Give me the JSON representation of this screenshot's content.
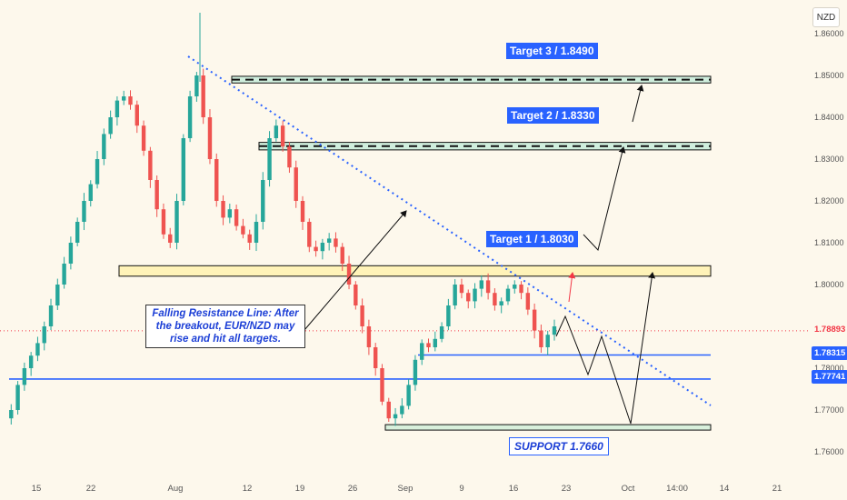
{
  "currency": "NZD",
  "chart_data": {
    "type": "candlestick",
    "instrument": "EUR/NZD",
    "ylim": [
      1.755,
      1.865
    ],
    "y_ticks": [
      "1.86000",
      "1.85000",
      "1.84000",
      "1.83000",
      "1.82000",
      "1.81000",
      "1.80000",
      "1.79000",
      "1.78000",
      "1.77000",
      "1.76000"
    ],
    "x_ticks": [
      "15",
      "22",
      "Aug",
      "12",
      "19",
      "26",
      "Sep",
      "9",
      "16",
      "23",
      "Oct",
      "14:00",
      "14",
      "21"
    ],
    "zones": [
      {
        "name": "target3",
        "low": 1.8482,
        "high": 1.8498,
        "label": "Target 3 / 1.8490"
      },
      {
        "name": "target2",
        "low": 1.8322,
        "high": 1.834,
        "label": "Target 2 / 1.8330"
      },
      {
        "name": "target1",
        "low": 1.802,
        "high": 1.8045,
        "label": "Target 1 / 1.8030"
      },
      {
        "name": "support",
        "low": 1.7654,
        "high": 1.7665,
        "label": "SUPPORT 1.7660"
      }
    ],
    "horizontal_lines": [
      {
        "value": 1.78315,
        "label": "1.78315",
        "color": "#2962ff"
      },
      {
        "value": 1.77741,
        "label": "1.77741",
        "color": "#2962ff"
      }
    ],
    "current_price": {
      "value": 1.78893,
      "label": "1.78893",
      "color": "#f23645"
    },
    "annotation": "Falling Resistance Line: After the breakout, EUR/NZD may rise and hit all targets.",
    "close_path": [
      1.768,
      1.77,
      1.776,
      1.78,
      1.783,
      1.786,
      1.79,
      1.795,
      1.8,
      1.805,
      1.81,
      1.815,
      1.82,
      1.824,
      1.83,
      1.836,
      1.84,
      1.844,
      1.845,
      1.843,
      1.838,
      1.832,
      1.825,
      1.818,
      1.812,
      1.81,
      1.82,
      1.835,
      1.845,
      1.85,
      1.84,
      1.83,
      1.82,
      1.816,
      1.818,
      1.814,
      1.812,
      1.81,
      1.815,
      1.825,
      1.835,
      1.838,
      1.833,
      1.828,
      1.82,
      1.815,
      1.809,
      1.808,
      1.81,
      1.811,
      1.809,
      1.805,
      1.8,
      1.795,
      1.79,
      1.785,
      1.78,
      1.772,
      1.768,
      1.769,
      1.771,
      1.776,
      1.782,
      1.786,
      1.785,
      1.787,
      1.79,
      1.795,
      1.8,
      1.798,
      1.796,
      1.799,
      1.801,
      1.798,
      1.795,
      1.796,
      1.799,
      1.8,
      1.798,
      1.794,
      1.789,
      1.785,
      1.788,
      1.79
    ],
    "projection_path": [
      [
        1.789,
        1.793,
        1.789,
        1.783,
        1.789
      ],
      [
        1.781,
        1.77,
        1.767,
        1.774,
        1.8
      ],
      [
        1.808,
        1.807,
        1.834
      ],
      [
        1.84,
        1.848
      ]
    ]
  }
}
